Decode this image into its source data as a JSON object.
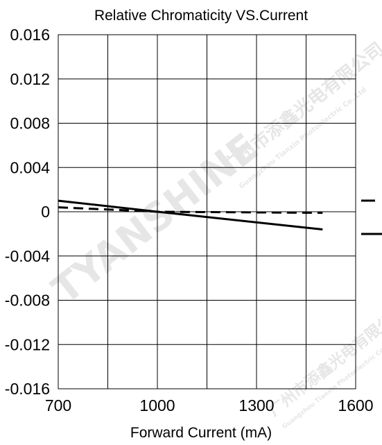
{
  "chart_data": {
    "type": "line",
    "title": "Relative Chromaticity VS.Current",
    "xlabel": "Forward Current (mA)",
    "ylabel": "",
    "xlim": [
      700,
      1600
    ],
    "ylim": [
      -0.016,
      0.016
    ],
    "x_ticks": [
      "700",
      "1000",
      "1300",
      "1600"
    ],
    "y_ticks": [
      "0.016",
      "0.012",
      "0.008",
      "0.004",
      "0",
      "-0.004",
      "-0.008",
      "-0.012",
      "-0.016"
    ],
    "x_grid": [
      700,
      850,
      1000,
      1150,
      1300,
      1450,
      1600
    ],
    "y_grid": [
      -0.016,
      -0.012,
      -0.008,
      -0.004,
      0,
      0.004,
      0.008,
      0.012,
      0.016
    ],
    "grid": true,
    "legend": "right (symbols only, no labels)",
    "series": [
      {
        "style": "dashed",
        "color": "#000000",
        "x": [
          700,
          1000,
          1500
        ],
        "y": [
          0.0004,
          0.0,
          -0.0001
        ]
      },
      {
        "style": "solid",
        "color": "#000000",
        "x": [
          700,
          1000,
          1500
        ],
        "y": [
          0.001,
          0.0,
          -0.0016
        ]
      }
    ]
  },
  "watermark": {
    "brand": "TYANSHINE",
    "company_cn": "广州市添鑫光电有限公司",
    "company_en": "Guangzhou Tianxin Photoelectric Co.,Ltd"
  }
}
